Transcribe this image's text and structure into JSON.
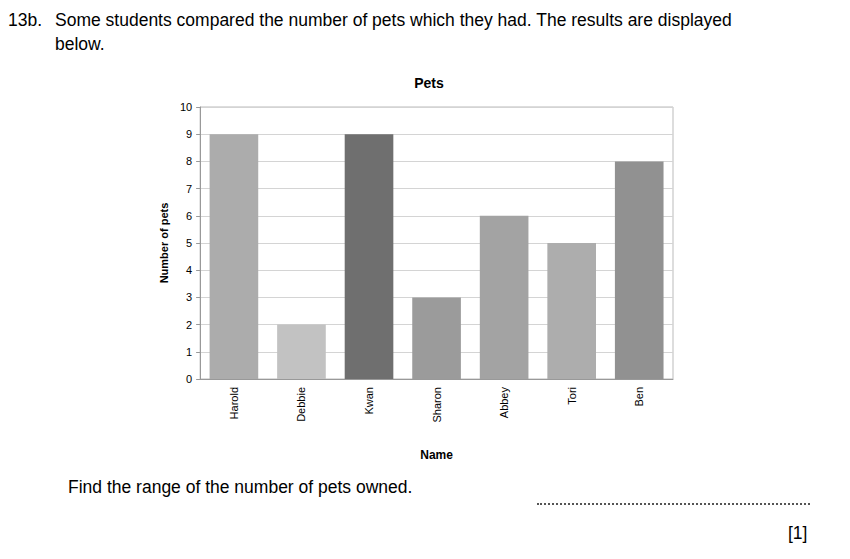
{
  "question": {
    "number": "13b.",
    "text": [
      "Some students compared the number of pets which they had. The results are displayed",
      "below."
    ],
    "prompt": "Find the range of the number of pets owned.",
    "marks": "[1]"
  },
  "chart_data": {
    "type": "bar",
    "title": "Pets",
    "x_label": "Name",
    "y_label": "Number of pets",
    "categories": [
      "Harold",
      "Debbie",
      "Kwan",
      "Sharon",
      "Abbey",
      "Tori",
      "Ben"
    ],
    "values": [
      9,
      2,
      9,
      3,
      6,
      5,
      8
    ],
    "colors": [
      "#acacac",
      "#c2c2c2",
      "#6f6f6f",
      "#9b9b9b",
      "#a3a3a3",
      "#adadad",
      "#919191"
    ],
    "ylim": [
      0,
      10
    ],
    "yticks": [
      0,
      1,
      2,
      3,
      4,
      5,
      6,
      7,
      8,
      9,
      10
    ],
    "grid": true
  }
}
